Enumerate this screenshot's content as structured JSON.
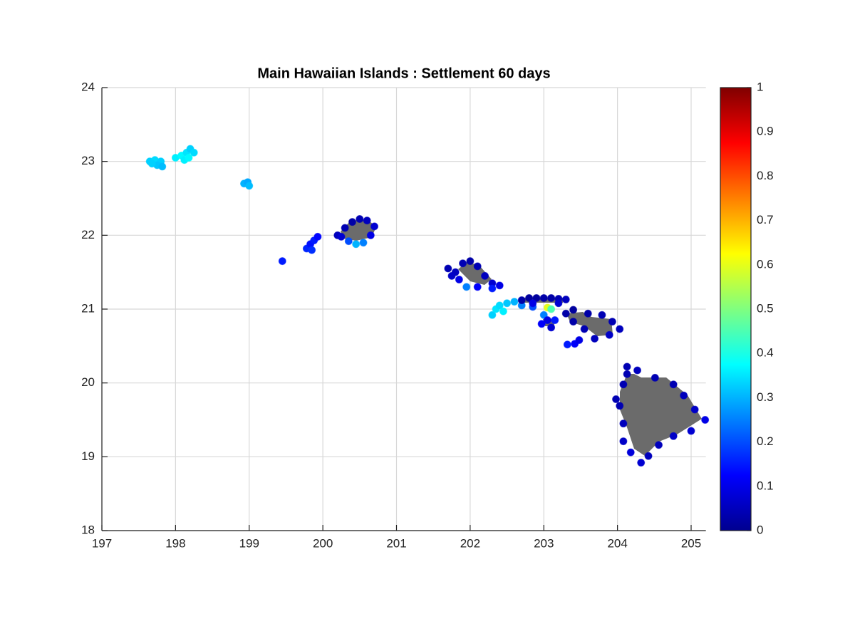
{
  "chart_data": {
    "type": "scatter",
    "title": "Main Hawaiian Islands : Settlement 60 days",
    "xlim": [
      197,
      205.2
    ],
    "xticks": [
      197,
      198,
      199,
      200,
      201,
      202,
      203,
      204,
      205
    ],
    "ylim": [
      18,
      24
    ],
    "yticks": [
      18,
      19,
      20,
      21,
      22,
      23,
      24
    ],
    "clim": [
      0,
      1
    ],
    "cticks": [
      0,
      0.1,
      0.2,
      0.3,
      0.4,
      0.5,
      0.6,
      0.7,
      0.8,
      0.9,
      1
    ],
    "grid": true,
    "colormap": "jet",
    "x": [
      197.65,
      197.72,
      197.8,
      197.75,
      197.82,
      197.68,
      198.0,
      198.08,
      198.15,
      198.2,
      198.25,
      198.12,
      198.18,
      198.93,
      198.98,
      199.0,
      199.45,
      199.78,
      199.83,
      199.88,
      199.93,
      199.85,
      200.2,
      200.3,
      200.4,
      200.5,
      200.6,
      200.7,
      200.65,
      200.55,
      200.45,
      200.35,
      200.25,
      201.7,
      201.8,
      201.9,
      202.0,
      202.1,
      202.2,
      202.3,
      202.4,
      202.3,
      202.1,
      201.95,
      201.85,
      201.75,
      202.3,
      202.35,
      202.4,
      202.5,
      202.6,
      202.45,
      202.7,
      202.85,
      202.7,
      202.8,
      202.9,
      203.0,
      203.1,
      203.2,
      203.3,
      202.85,
      203.2,
      203.0,
      203.05,
      203.1,
      202.97,
      203.15,
      203.05,
      203.1,
      203.3,
      203.4,
      203.6,
      203.79,
      203.93,
      204.03,
      203.89,
      203.69,
      203.55,
      203.4,
      203.32,
      203.42,
      203.48,
      204.13,
      204.27,
      204.51,
      204.76,
      204.9,
      205.05,
      205.19,
      205.0,
      204.76,
      204.56,
      204.42,
      204.32,
      204.18,
      204.08,
      204.08,
      204.03,
      203.98,
      204.08,
      204.13
    ],
    "y": [
      23.0,
      23.02,
      23.0,
      22.95,
      22.93,
      22.97,
      23.05,
      23.08,
      23.12,
      23.17,
      23.12,
      23.02,
      23.05,
      22.7,
      22.72,
      22.67,
      21.65,
      21.82,
      21.88,
      21.93,
      21.98,
      21.8,
      22.0,
      22.1,
      22.18,
      22.22,
      22.2,
      22.12,
      22.0,
      21.9,
      21.88,
      21.92,
      21.98,
      21.55,
      21.5,
      21.62,
      21.65,
      21.58,
      21.45,
      21.35,
      21.32,
      21.28,
      21.3,
      21.3,
      21.4,
      21.45,
      20.92,
      21.0,
      21.05,
      21.08,
      21.1,
      20.97,
      21.05,
      21.03,
      21.12,
      21.15,
      21.15,
      21.15,
      21.15,
      21.14,
      21.13,
      21.08,
      21.08,
      20.92,
      20.85,
      20.75,
      20.8,
      20.85,
      21.02,
      21.0,
      20.94,
      20.99,
      20.94,
      20.92,
      20.83,
      20.73,
      20.65,
      20.6,
      20.73,
      20.83,
      20.52,
      20.53,
      20.58,
      20.22,
      20.17,
      20.07,
      19.98,
      19.83,
      19.64,
      19.5,
      19.35,
      19.28,
      19.16,
      19.01,
      18.92,
      19.06,
      19.21,
      19.45,
      19.69,
      19.78,
      19.98,
      20.12
    ],
    "c": [
      0.33,
      0.34,
      0.33,
      0.32,
      0.31,
      0.33,
      0.36,
      0.37,
      0.35,
      0.33,
      0.34,
      0.36,
      0.37,
      0.3,
      0.29,
      0.31,
      0.15,
      0.16,
      0.14,
      0.15,
      0.13,
      0.17,
      0.06,
      0.05,
      0.04,
      0.05,
      0.06,
      0.08,
      0.1,
      0.25,
      0.3,
      0.2,
      0.08,
      0.05,
      0.06,
      0.05,
      0.04,
      0.05,
      0.06,
      0.08,
      0.1,
      0.15,
      0.12,
      0.25,
      0.1,
      0.07,
      0.33,
      0.35,
      0.34,
      0.32,
      0.3,
      0.36,
      0.25,
      0.2,
      0.04,
      0.03,
      0.03,
      0.04,
      0.04,
      0.05,
      0.06,
      0.1,
      0.08,
      0.25,
      0.1,
      0.08,
      0.12,
      0.15,
      0.6,
      0.45,
      0.04,
      0.03,
      0.04,
      0.05,
      0.05,
      0.06,
      0.07,
      0.06,
      0.05,
      0.04,
      0.15,
      0.12,
      0.1,
      0.05,
      0.06,
      0.05,
      0.05,
      0.06,
      0.07,
      0.1,
      0.08,
      0.07,
      0.06,
      0.06,
      0.08,
      0.09,
      0.07,
      0.06,
      0.05,
      0.05,
      0.05,
      0.05
    ]
  }
}
